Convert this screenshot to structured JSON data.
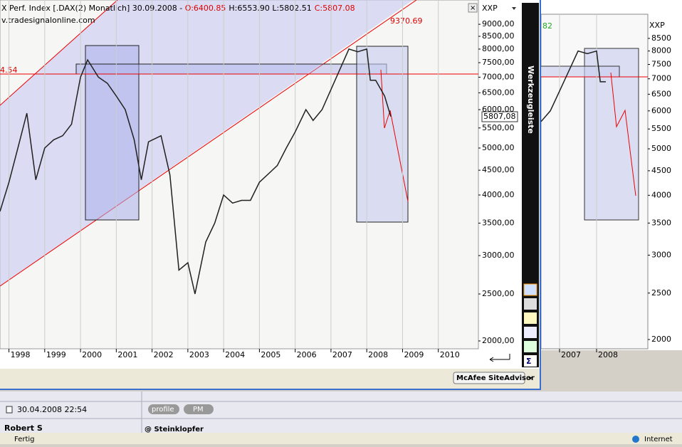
{
  "header": {
    "title": "X Perf. Index [.DAX(2) Monatlich] 30.09.2008 - ",
    "open": "O:6400.85",
    "high_low": "H:6553.90 L:5802.51",
    "close": "C:5807.08",
    "source": "v.tradesignalonline.com"
  },
  "chart_data": [
    {
      "type": "line",
      "symbol": "XXP",
      "log_scale": true,
      "grid": "x",
      "color": "#202020",
      "channel_label": "9370.69",
      "line_label": "4.54",
      "last_price": "5807,08",
      "xlim": [
        1997.75,
        2011.12
      ],
      "xticks": [
        1998,
        1999,
        2000,
        2001,
        2002,
        2003,
        2004,
        2005,
        2006,
        2007,
        2008,
        2009,
        2010
      ],
      "ylim": [
        1927,
        10100
      ],
      "yticks": [
        {
          "value": 9000,
          "label": "9000,00"
        },
        {
          "value": 8500,
          "label": "8500,00"
        },
        {
          "value": 8000,
          "label": "8000,00"
        },
        {
          "value": 7500,
          "label": "7500,00"
        },
        {
          "value": 7000,
          "label": "7000,00"
        },
        {
          "value": 6500,
          "label": "6500,00"
        },
        {
          "value": 6000,
          "label": "6000,00"
        },
        {
          "value": 5500,
          "label": "5500,00"
        },
        {
          "value": 5000,
          "label": "5000,00"
        },
        {
          "value": 4500,
          "label": "4500,00"
        },
        {
          "value": 4000,
          "label": "4000,00"
        },
        {
          "value": 3500,
          "label": "3500,00"
        },
        {
          "value": 3000,
          "label": "3000,00"
        },
        {
          "value": 2500,
          "label": "2500,00"
        },
        {
          "value": 2000,
          "label": "2000,00"
        }
      ],
      "x": [
        1997.75,
        1998.0,
        1998.25,
        1998.5,
        1998.75,
        1999.0,
        1999.25,
        1999.5,
        1999.75,
        2000.0,
        2000.2,
        2000.5,
        2000.75,
        2001.0,
        2001.25,
        2001.5,
        2001.7,
        2001.9,
        2002.25,
        2002.5,
        2002.75,
        2003.0,
        2003.2,
        2003.5,
        2003.75,
        2004.0,
        2004.25,
        2004.5,
        2004.75,
        2005.0,
        2005.5,
        2005.75,
        2006.0,
        2006.3,
        2006.5,
        2006.75,
        2007.0,
        2007.5,
        2007.75,
        2008.0,
        2008.1,
        2008.25,
        2008.5,
        2008.67
      ],
      "values": [
        3700,
        4250,
        5000,
        5900,
        4300,
        5000,
        5200,
        5300,
        5600,
        7000,
        7600,
        7000,
        6800,
        6400,
        6000,
        5200,
        4300,
        5150,
        5300,
        4400,
        2800,
        2900,
        2500,
        3200,
        3500,
        4000,
        3850,
        3900,
        3900,
        4250,
        4600,
        5000,
        5400,
        6000,
        5700,
        6000,
        6600,
        8000,
        7900,
        8000,
        6900,
        6900,
        6400,
        5807
      ]
    },
    {
      "type": "line",
      "symbol": "XXP",
      "log_scale": true,
      "grid": "x",
      "color": "#202020",
      "corner_label": "82",
      "xlim": [
        2006.5,
        2009.385
      ],
      "xticks": [
        2007,
        2008
      ],
      "ylim": [
        1913,
        9546
      ],
      "yticks": [
        8500,
        8000,
        7500,
        7000,
        6500,
        6000,
        5500,
        5000,
        4500,
        4000,
        3500,
        3000,
        2500,
        2000
      ],
      "x": [
        2006.5,
        2006.75,
        2007.0,
        2007.5,
        2007.75,
        2008.0,
        2008.1,
        2008.25
      ],
      "values": [
        5700,
        6000,
        6600,
        8000,
        7900,
        8000,
        6900,
        6900
      ]
    }
  ],
  "toolbar": "Werkzeugleiste",
  "siteadvisor": "McAfee SiteAdvisor",
  "forum": {
    "date": "30.04.2008 22:54",
    "buttons": [
      "profile",
      "PM"
    ],
    "author": "Robert S",
    "reply": "@ Steinklopfer"
  },
  "status": {
    "left": "Fertig",
    "zone": "Internet"
  }
}
